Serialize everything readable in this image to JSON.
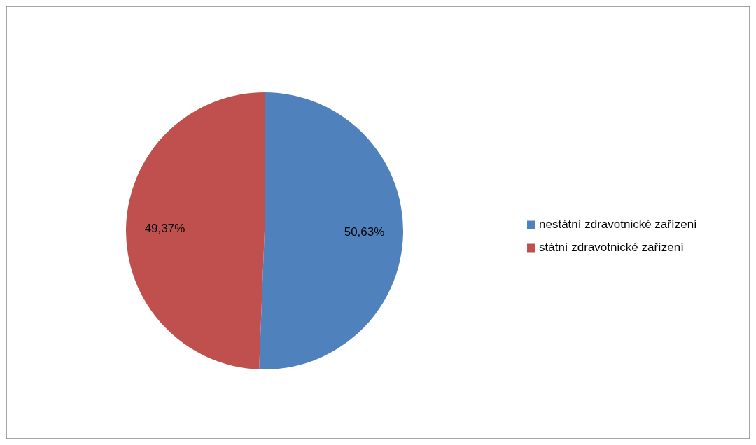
{
  "chart_data": {
    "type": "pie",
    "categories": [
      "nestátní zdravotnické zařízení",
      "státní zdravotnické zařízení"
    ],
    "values": [
      50.63,
      49.37
    ],
    "colors": [
      "#4f81bd",
      "#c0504d"
    ],
    "value_labels": [
      "50,63%",
      "49,37%"
    ],
    "legend": "right"
  }
}
